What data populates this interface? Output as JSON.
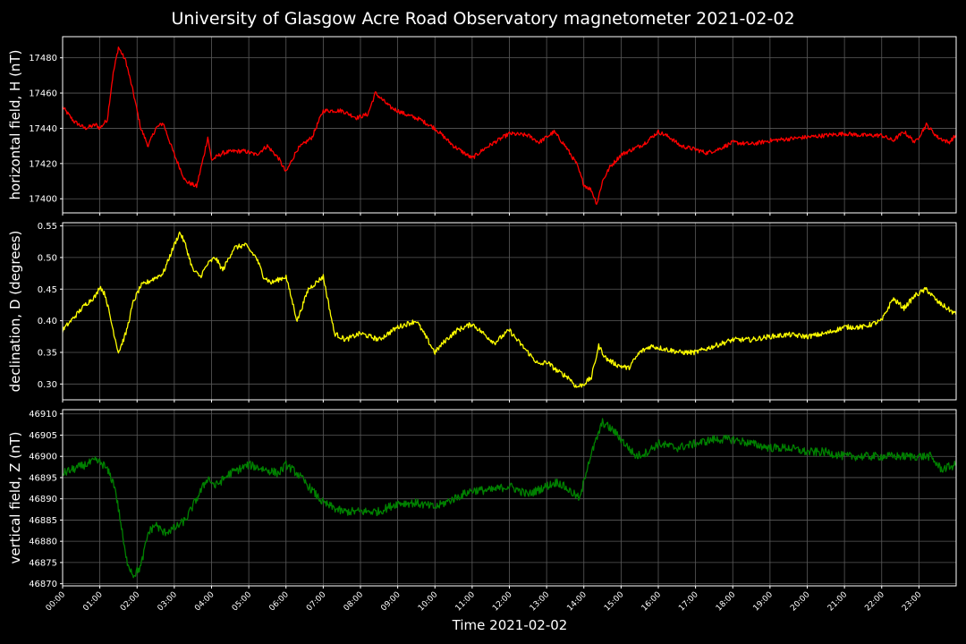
{
  "chart_data": {
    "type": "line",
    "title": "University of Glasgow Acre Road Observatory magnetometer 2021-02-02",
    "xlabel": "Time 2021-02-02",
    "x_ticks": [
      "00:00",
      "01:00",
      "02:00",
      "03:00",
      "04:00",
      "05:00",
      "06:00",
      "07:00",
      "08:00",
      "09:00",
      "10:00",
      "11:00",
      "12:00",
      "13:00",
      "14:00",
      "15:00",
      "16:00",
      "17:00",
      "18:00",
      "19:00",
      "20:00",
      "21:00",
      "22:00",
      "23:00"
    ],
    "xlim": [
      0,
      24
    ],
    "grid": true,
    "panels": [
      {
        "ylabel": "horizontal field, H (nT)",
        "color": "#ff0000",
        "ylim": [
          17392,
          17492
        ],
        "y_ticks": [
          17400,
          17420,
          17440,
          17460,
          17480
        ],
        "noise": 1.2,
        "x": [
          0,
          0.3,
          0.6,
          0.9,
          1.0,
          1.2,
          1.35,
          1.5,
          1.7,
          1.9,
          2.1,
          2.3,
          2.5,
          2.7,
          3.0,
          3.3,
          3.6,
          3.8,
          3.9,
          4.0,
          4.3,
          4.6,
          4.9,
          5.2,
          5.5,
          5.8,
          6.0,
          6.3,
          6.7,
          7.0,
          7.5,
          7.9,
          8.2,
          8.4,
          8.8,
          9.2,
          9.6,
          10.0,
          10.5,
          11.0,
          11.3,
          11.6,
          12.0,
          12.5,
          12.8,
          13.2,
          13.5,
          13.8,
          14.0,
          14.2,
          14.35,
          14.5,
          14.7,
          15.0,
          15.3,
          15.6,
          16.0,
          16.3,
          16.6,
          17.0,
          17.3,
          17.6,
          18.0,
          18.5,
          19.0,
          19.5,
          20.0,
          20.5,
          21.0,
          21.5,
          22.0,
          22.3,
          22.6,
          22.9,
          23.2,
          23.5,
          23.8,
          24.0
        ],
        "y": [
          17452,
          17444,
          17440,
          17442,
          17440,
          17445,
          17470,
          17486,
          17478,
          17460,
          17440,
          17430,
          17440,
          17443,
          17425,
          17410,
          17407,
          17425,
          17435,
          17422,
          17426,
          17427,
          17427,
          17425,
          17430,
          17423,
          17415,
          17428,
          17435,
          17450,
          17450,
          17446,
          17448,
          17460,
          17452,
          17448,
          17445,
          17440,
          17430,
          17423,
          17428,
          17432,
          17437,
          17436,
          17432,
          17438,
          17430,
          17420,
          17408,
          17405,
          17397,
          17410,
          17418,
          17425,
          17428,
          17431,
          17438,
          17435,
          17430,
          17428,
          17426,
          17428,
          17432,
          17431,
          17433,
          17434,
          17435,
          17436,
          17437,
          17436,
          17436,
          17433,
          17438,
          17432,
          17442,
          17435,
          17432,
          17436
        ]
      },
      {
        "ylabel": "declination, D (degrees)",
        "color": "#ffff00",
        "ylim": [
          0.275,
          0.555
        ],
        "y_ticks": [
          0.3,
          0.35,
          0.4,
          0.45,
          0.5,
          0.55
        ],
        "noise": 0.004,
        "x": [
          0,
          0.3,
          0.6,
          0.9,
          1.0,
          1.15,
          1.3,
          1.5,
          1.7,
          1.9,
          2.1,
          2.4,
          2.7,
          3.0,
          3.15,
          3.3,
          3.5,
          3.7,
          3.9,
          4.1,
          4.3,
          4.6,
          4.9,
          5.2,
          5.4,
          5.6,
          6.0,
          6.3,
          6.6,
          7.0,
          7.3,
          7.6,
          8.0,
          8.5,
          9.0,
          9.5,
          9.8,
          10.0,
          10.3,
          10.6,
          11.0,
          11.3,
          11.6,
          12.0,
          12.2,
          12.5,
          12.8,
          13.0,
          13.3,
          13.6,
          13.8,
          14.0,
          14.2,
          14.4,
          14.6,
          14.9,
          15.2,
          15.5,
          15.8,
          16.2,
          16.6,
          17.0,
          17.5,
          18.0,
          18.5,
          19.0,
          19.5,
          20.0,
          20.5,
          21.0,
          21.5,
          22.0,
          22.3,
          22.6,
          22.9,
          23.2,
          23.5,
          24.0
        ],
        "y": [
          0.385,
          0.405,
          0.425,
          0.44,
          0.455,
          0.44,
          0.4,
          0.35,
          0.38,
          0.43,
          0.455,
          0.465,
          0.475,
          0.52,
          0.54,
          0.52,
          0.48,
          0.47,
          0.49,
          0.5,
          0.48,
          0.515,
          0.52,
          0.5,
          0.47,
          0.46,
          0.47,
          0.4,
          0.45,
          0.47,
          0.38,
          0.37,
          0.38,
          0.37,
          0.39,
          0.4,
          0.37,
          0.35,
          0.37,
          0.385,
          0.395,
          0.38,
          0.365,
          0.385,
          0.37,
          0.35,
          0.33,
          0.335,
          0.32,
          0.31,
          0.295,
          0.3,
          0.31,
          0.36,
          0.34,
          0.33,
          0.325,
          0.35,
          0.36,
          0.355,
          0.35,
          0.35,
          0.36,
          0.37,
          0.37,
          0.375,
          0.378,
          0.375,
          0.38,
          0.39,
          0.39,
          0.4,
          0.435,
          0.42,
          0.44,
          0.45,
          0.43,
          0.41
        ]
      },
      {
        "ylabel": "vertical field, Z (nT)",
        "color": "#008000",
        "ylim": [
          46869.5,
          46911
        ],
        "y_ticks": [
          46870,
          46875,
          46880,
          46885,
          46890,
          46895,
          46900,
          46905,
          46910
        ],
        "noise": 1.0,
        "x": [
          0,
          0.3,
          0.6,
          0.9,
          1.1,
          1.25,
          1.4,
          1.55,
          1.7,
          1.9,
          2.1,
          2.3,
          2.5,
          2.7,
          3.0,
          3.3,
          3.6,
          3.9,
          4.1,
          4.5,
          5.0,
          5.4,
          5.8,
          6.0,
          6.3,
          6.6,
          7.0,
          7.5,
          8.0,
          8.5,
          9.0,
          9.5,
          10.0,
          10.5,
          11.0,
          11.5,
          12.0,
          12.5,
          13.0,
          13.3,
          13.6,
          13.9,
          14.1,
          14.3,
          14.5,
          14.8,
          15.1,
          15.4,
          15.7,
          16.0,
          16.5,
          17.0,
          17.5,
          18.0,
          18.5,
          19.0,
          19.5,
          20.0,
          20.5,
          21.0,
          21.5,
          22.0,
          22.5,
          23.0,
          23.3,
          23.6,
          24.0
        ],
        "y": [
          46896,
          46897,
          46898,
          46899,
          46898,
          46896,
          46893,
          46885,
          46876,
          46872,
          46874,
          46882,
          46884,
          46882,
          46883,
          46885,
          46890,
          46895,
          46893,
          46896,
          46898,
          46897,
          46896,
          46898,
          46896,
          46893,
          46889,
          46887,
          46887,
          46887,
          46889,
          46889,
          46888,
          46890,
          46892,
          46892,
          46893,
          46891,
          46893,
          46894,
          46892,
          46890,
          46898,
          46903,
          46908,
          46906,
          46903,
          46900,
          46901,
          46903,
          46902,
          46903,
          46904,
          46904,
          46903,
          46902,
          46902,
          46901,
          46901,
          46900,
          46900,
          46900,
          46900,
          46900,
          46900,
          46897,
          46898
        ]
      }
    ]
  }
}
